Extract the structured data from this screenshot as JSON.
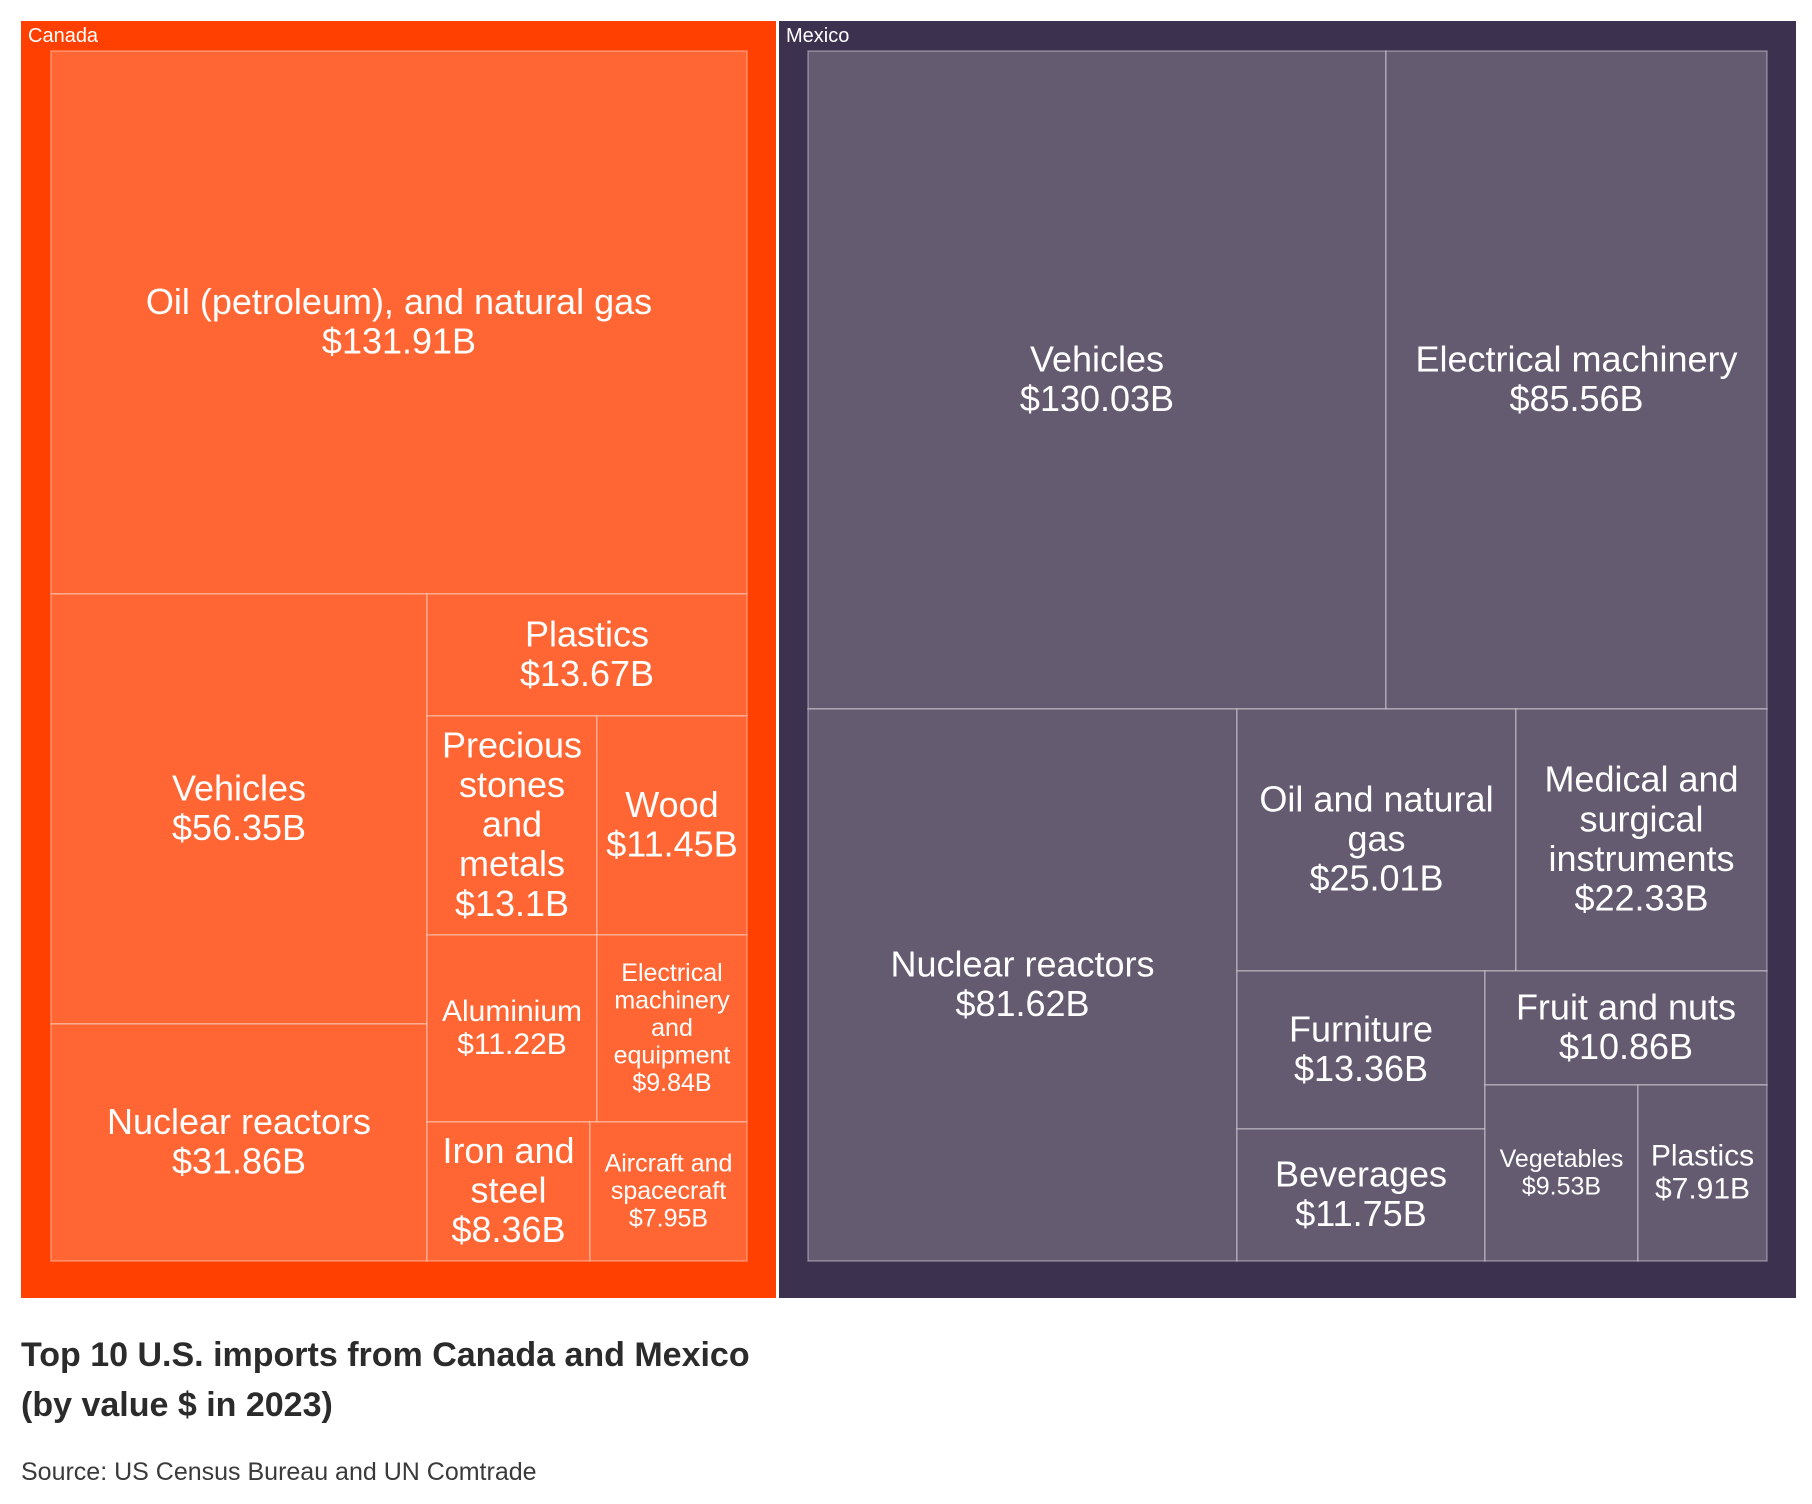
{
  "chart_data": {
    "type": "treemap",
    "title": [
      "Top 10 U.S. imports from Canada and Mexico",
      "(by value $ in 2023)"
    ],
    "source": "Source: US Census Bureau and UN Comtrade",
    "groups": [
      {
        "name": "Canada",
        "color": "#ff4000",
        "cell_color": "#ff6633",
        "items": [
          {
            "label": [
              "Oil (petroleum), and natural gas",
              "$131.91B"
            ],
            "value": 131.91
          },
          {
            "label": [
              "Vehicles",
              "$56.35B"
            ],
            "value": 56.35
          },
          {
            "label": [
              "Nuclear reactors",
              "$31.86B"
            ],
            "value": 31.86
          },
          {
            "label": [
              "Plastics",
              "$13.67B"
            ],
            "value": 13.67
          },
          {
            "label": [
              "Precious",
              "stones",
              "and",
              "metals",
              "$13.1B"
            ],
            "value": 13.1
          },
          {
            "label": [
              "Wood",
              "$11.45B"
            ],
            "value": 11.45
          },
          {
            "label": [
              "Aluminium",
              "$11.22B"
            ],
            "value": 11.22
          },
          {
            "label": [
              "Electrical",
              "machinery",
              "and",
              "equipment",
              "$9.84B"
            ],
            "value": 9.84
          },
          {
            "label": [
              "Iron and",
              "steel",
              "$8.36B"
            ],
            "value": 8.36
          },
          {
            "label": [
              "Aircraft and",
              "spacecraft",
              "$7.95B"
            ],
            "value": 7.95
          }
        ]
      },
      {
        "name": "Mexico",
        "color": "#3d3150",
        "cell_color": "#655b71",
        "items": [
          {
            "label": [
              "Vehicles",
              "$130.03B"
            ],
            "value": 130.03
          },
          {
            "label": [
              "Electrical machinery",
              "$85.56B"
            ],
            "value": 85.56
          },
          {
            "label": [
              "Nuclear reactors",
              "$81.62B"
            ],
            "value": 81.62
          },
          {
            "label": [
              "Oil and natural",
              "gas",
              "$25.01B"
            ],
            "value": 25.01
          },
          {
            "label": [
              "Medical and",
              "surgical",
              "instruments",
              "$22.33B"
            ],
            "value": 22.33
          },
          {
            "label": [
              "Furniture",
              "$13.36B"
            ],
            "value": 13.36
          },
          {
            "label": [
              "Beverages",
              "$11.75B"
            ],
            "value": 11.75
          },
          {
            "label": [
              "Fruit and nuts",
              "$10.86B"
            ],
            "value": 10.86
          },
          {
            "label": [
              "Vegetables",
              "$9.53B"
            ],
            "value": 9.53
          },
          {
            "label": [
              "Plastics",
              "$7.91B"
            ],
            "value": 7.91
          }
        ]
      }
    ]
  }
}
